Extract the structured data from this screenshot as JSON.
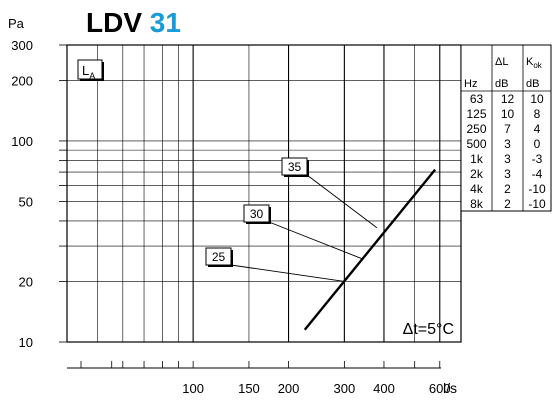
{
  "header": {
    "y_unit": "Pa",
    "model": "LDV",
    "size": "31"
  },
  "chart_data": {
    "type": "line",
    "title": "LDV 31",
    "ylabel": "Pa",
    "xlabel": "l/s",
    "x_scale": "log",
    "y_scale": "log",
    "xlim": [
      40,
      700
    ],
    "ylim": [
      10,
      300
    ],
    "x_tick_labels": [
      "100",
      "150",
      "200",
      "300",
      "400",
      "600"
    ],
    "y_tick_labels": [
      "10",
      "20",
      "50",
      "100",
      "200",
      "300"
    ],
    "grid": true,
    "series": [
      {
        "values": [
          [
            225,
            11.5
          ],
          [
            580,
            72
          ]
        ]
      }
    ],
    "annotations": [
      {
        "text": "L",
        "subscript": "A"
      },
      {
        "text": "25"
      },
      {
        "text": "30"
      },
      {
        "text": "35"
      },
      {
        "text": "Δt=5°C"
      }
    ],
    "leader_targets": [
      {
        "label": "25",
        "x": 300,
        "y": 20
      },
      {
        "label": "30",
        "x": 340,
        "y": 26
      },
      {
        "label": "35",
        "x": 380,
        "y": 37
      }
    ]
  },
  "correction_table": {
    "columns": [
      "Hz",
      "ΔL",
      "Kok"
    ],
    "units": [
      "",
      "dB",
      "dB"
    ],
    "rows": [
      [
        "63",
        "12",
        "10"
      ],
      [
        "125",
        "10",
        "8"
      ],
      [
        "250",
        "7",
        "4"
      ],
      [
        "500",
        "3",
        "0"
      ],
      [
        "1k",
        "3",
        "-3"
      ],
      [
        "2k",
        "3",
        "-4"
      ],
      [
        "4k",
        "2",
        "-10"
      ],
      [
        "8k",
        "2",
        "-10"
      ]
    ]
  },
  "colors": {
    "accent": "#1a9ad6",
    "note": "#7aa6d8",
    "ink": "#000000",
    "title": "#6e6e6e"
  }
}
